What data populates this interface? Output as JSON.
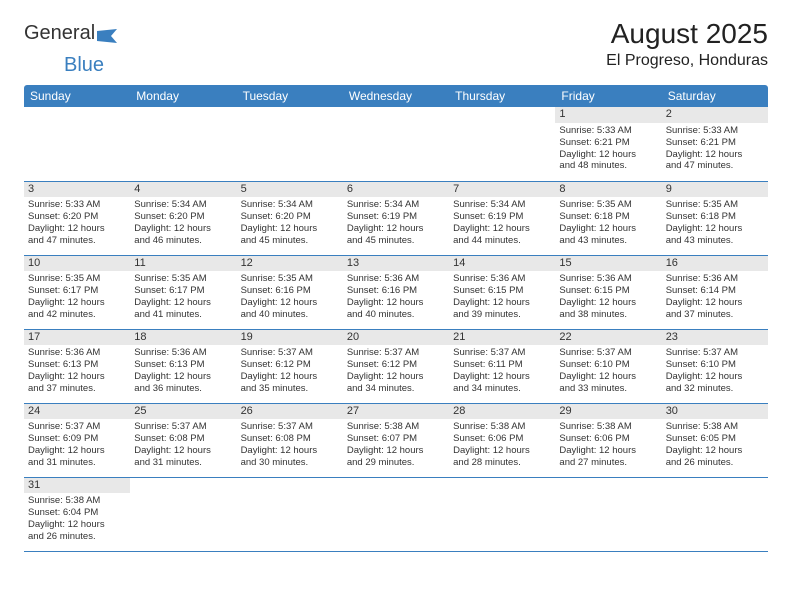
{
  "logo": {
    "general": "General",
    "blue": "Blue"
  },
  "title": {
    "month": "August 2025",
    "location": "El Progreso, Honduras"
  },
  "colors": {
    "header_bg": "#3a7fbf",
    "header_text": "#ffffff",
    "row_border": "#3a7fbf",
    "daynum_bg": "#e8e8e8",
    "body_text": "#333333",
    "page_bg": "#ffffff"
  },
  "typography": {
    "title_fontsize": 28,
    "location_fontsize": 16,
    "header_fontsize": 12,
    "daynum_fontsize": 11,
    "cell_fontsize": 9.5
  },
  "weekdays": [
    "Sunday",
    "Monday",
    "Tuesday",
    "Wednesday",
    "Thursday",
    "Friday",
    "Saturday"
  ],
  "weeks": [
    [
      null,
      null,
      null,
      null,
      null,
      {
        "n": "1",
        "sunrise": "Sunrise: 5:33 AM",
        "sunset": "Sunset: 6:21 PM",
        "d1": "Daylight: 12 hours",
        "d2": "and 48 minutes."
      },
      {
        "n": "2",
        "sunrise": "Sunrise: 5:33 AM",
        "sunset": "Sunset: 6:21 PM",
        "d1": "Daylight: 12 hours",
        "d2": "and 47 minutes."
      }
    ],
    [
      {
        "n": "3",
        "sunrise": "Sunrise: 5:33 AM",
        "sunset": "Sunset: 6:20 PM",
        "d1": "Daylight: 12 hours",
        "d2": "and 47 minutes."
      },
      {
        "n": "4",
        "sunrise": "Sunrise: 5:34 AM",
        "sunset": "Sunset: 6:20 PM",
        "d1": "Daylight: 12 hours",
        "d2": "and 46 minutes."
      },
      {
        "n": "5",
        "sunrise": "Sunrise: 5:34 AM",
        "sunset": "Sunset: 6:20 PM",
        "d1": "Daylight: 12 hours",
        "d2": "and 45 minutes."
      },
      {
        "n": "6",
        "sunrise": "Sunrise: 5:34 AM",
        "sunset": "Sunset: 6:19 PM",
        "d1": "Daylight: 12 hours",
        "d2": "and 45 minutes."
      },
      {
        "n": "7",
        "sunrise": "Sunrise: 5:34 AM",
        "sunset": "Sunset: 6:19 PM",
        "d1": "Daylight: 12 hours",
        "d2": "and 44 minutes."
      },
      {
        "n": "8",
        "sunrise": "Sunrise: 5:35 AM",
        "sunset": "Sunset: 6:18 PM",
        "d1": "Daylight: 12 hours",
        "d2": "and 43 minutes."
      },
      {
        "n": "9",
        "sunrise": "Sunrise: 5:35 AM",
        "sunset": "Sunset: 6:18 PM",
        "d1": "Daylight: 12 hours",
        "d2": "and 43 minutes."
      }
    ],
    [
      {
        "n": "10",
        "sunrise": "Sunrise: 5:35 AM",
        "sunset": "Sunset: 6:17 PM",
        "d1": "Daylight: 12 hours",
        "d2": "and 42 minutes."
      },
      {
        "n": "11",
        "sunrise": "Sunrise: 5:35 AM",
        "sunset": "Sunset: 6:17 PM",
        "d1": "Daylight: 12 hours",
        "d2": "and 41 minutes."
      },
      {
        "n": "12",
        "sunrise": "Sunrise: 5:35 AM",
        "sunset": "Sunset: 6:16 PM",
        "d1": "Daylight: 12 hours",
        "d2": "and 40 minutes."
      },
      {
        "n": "13",
        "sunrise": "Sunrise: 5:36 AM",
        "sunset": "Sunset: 6:16 PM",
        "d1": "Daylight: 12 hours",
        "d2": "and 40 minutes."
      },
      {
        "n": "14",
        "sunrise": "Sunrise: 5:36 AM",
        "sunset": "Sunset: 6:15 PM",
        "d1": "Daylight: 12 hours",
        "d2": "and 39 minutes."
      },
      {
        "n": "15",
        "sunrise": "Sunrise: 5:36 AM",
        "sunset": "Sunset: 6:15 PM",
        "d1": "Daylight: 12 hours",
        "d2": "and 38 minutes."
      },
      {
        "n": "16",
        "sunrise": "Sunrise: 5:36 AM",
        "sunset": "Sunset: 6:14 PM",
        "d1": "Daylight: 12 hours",
        "d2": "and 37 minutes."
      }
    ],
    [
      {
        "n": "17",
        "sunrise": "Sunrise: 5:36 AM",
        "sunset": "Sunset: 6:13 PM",
        "d1": "Daylight: 12 hours",
        "d2": "and 37 minutes."
      },
      {
        "n": "18",
        "sunrise": "Sunrise: 5:36 AM",
        "sunset": "Sunset: 6:13 PM",
        "d1": "Daylight: 12 hours",
        "d2": "and 36 minutes."
      },
      {
        "n": "19",
        "sunrise": "Sunrise: 5:37 AM",
        "sunset": "Sunset: 6:12 PM",
        "d1": "Daylight: 12 hours",
        "d2": "and 35 minutes."
      },
      {
        "n": "20",
        "sunrise": "Sunrise: 5:37 AM",
        "sunset": "Sunset: 6:12 PM",
        "d1": "Daylight: 12 hours",
        "d2": "and 34 minutes."
      },
      {
        "n": "21",
        "sunrise": "Sunrise: 5:37 AM",
        "sunset": "Sunset: 6:11 PM",
        "d1": "Daylight: 12 hours",
        "d2": "and 34 minutes."
      },
      {
        "n": "22",
        "sunrise": "Sunrise: 5:37 AM",
        "sunset": "Sunset: 6:10 PM",
        "d1": "Daylight: 12 hours",
        "d2": "and 33 minutes."
      },
      {
        "n": "23",
        "sunrise": "Sunrise: 5:37 AM",
        "sunset": "Sunset: 6:10 PM",
        "d1": "Daylight: 12 hours",
        "d2": "and 32 minutes."
      }
    ],
    [
      {
        "n": "24",
        "sunrise": "Sunrise: 5:37 AM",
        "sunset": "Sunset: 6:09 PM",
        "d1": "Daylight: 12 hours",
        "d2": "and 31 minutes."
      },
      {
        "n": "25",
        "sunrise": "Sunrise: 5:37 AM",
        "sunset": "Sunset: 6:08 PM",
        "d1": "Daylight: 12 hours",
        "d2": "and 31 minutes."
      },
      {
        "n": "26",
        "sunrise": "Sunrise: 5:37 AM",
        "sunset": "Sunset: 6:08 PM",
        "d1": "Daylight: 12 hours",
        "d2": "and 30 minutes."
      },
      {
        "n": "27",
        "sunrise": "Sunrise: 5:38 AM",
        "sunset": "Sunset: 6:07 PM",
        "d1": "Daylight: 12 hours",
        "d2": "and 29 minutes."
      },
      {
        "n": "28",
        "sunrise": "Sunrise: 5:38 AM",
        "sunset": "Sunset: 6:06 PM",
        "d1": "Daylight: 12 hours",
        "d2": "and 28 minutes."
      },
      {
        "n": "29",
        "sunrise": "Sunrise: 5:38 AM",
        "sunset": "Sunset: 6:06 PM",
        "d1": "Daylight: 12 hours",
        "d2": "and 27 minutes."
      },
      {
        "n": "30",
        "sunrise": "Sunrise: 5:38 AM",
        "sunset": "Sunset: 6:05 PM",
        "d1": "Daylight: 12 hours",
        "d2": "and 26 minutes."
      }
    ],
    [
      {
        "n": "31",
        "sunrise": "Sunrise: 5:38 AM",
        "sunset": "Sunset: 6:04 PM",
        "d1": "Daylight: 12 hours",
        "d2": "and 26 minutes."
      },
      null,
      null,
      null,
      null,
      null,
      null
    ]
  ]
}
